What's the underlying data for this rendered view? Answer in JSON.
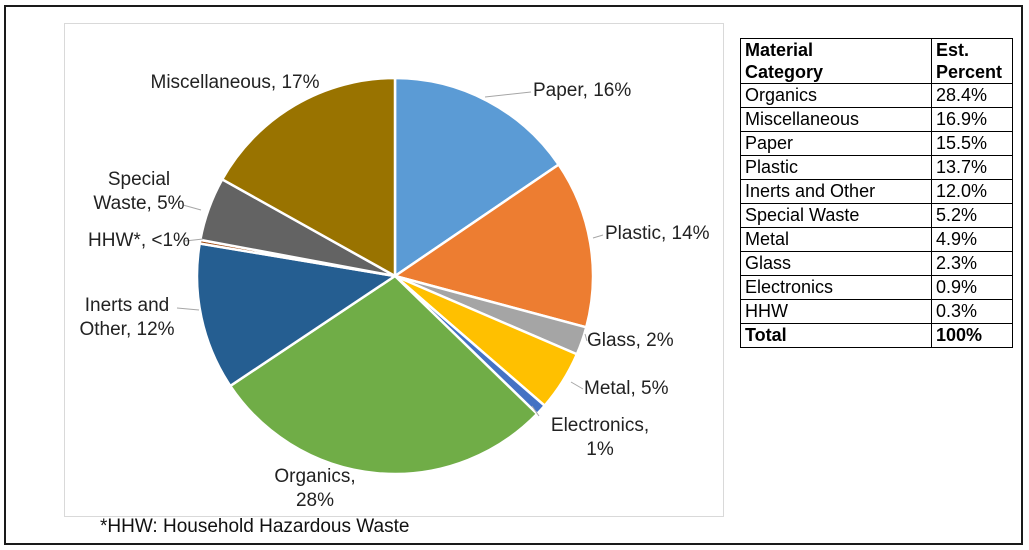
{
  "footnote": "*HHW: Household Hazardous Waste",
  "chart_data": {
    "type": "pie",
    "title": "",
    "slices": [
      {
        "name": "Paper",
        "label": [
          "Paper, 16%"
        ],
        "value": 15.5,
        "color": "#5b9bd5"
      },
      {
        "name": "Plastic",
        "label": [
          "Plastic, 14%"
        ],
        "value": 13.7,
        "color": "#ed7d31"
      },
      {
        "name": "Glass",
        "label": [
          "Glass, 2%"
        ],
        "value": 2.3,
        "color": "#a5a5a5"
      },
      {
        "name": "Metal",
        "label": [
          "Metal, 5%"
        ],
        "value": 4.9,
        "color": "#ffc000"
      },
      {
        "name": "Electronics",
        "label": [
          "Electronics,",
          "1%"
        ],
        "value": 0.9,
        "color": "#4472c4"
      },
      {
        "name": "Organics",
        "label": [
          "Organics,",
          "28%"
        ],
        "value": 28.4,
        "color": "#70ad47"
      },
      {
        "name": "Inerts and Other",
        "label": [
          "Inerts and",
          "Other, 12%"
        ],
        "value": 12.0,
        "color": "#255e91"
      },
      {
        "name": "HHW",
        "label": [
          "HHW*, <1%"
        ],
        "value": 0.3,
        "color": "#9e480e"
      },
      {
        "name": "Special Waste",
        "label": [
          "Special",
          "Waste, 5%"
        ],
        "value": 5.2,
        "color": "#636363"
      },
      {
        "name": "Miscellaneous",
        "label": [
          "Miscellaneous, 17%"
        ],
        "value": 16.9,
        "color": "#997300"
      }
    ]
  },
  "table": {
    "headers": [
      [
        "Material",
        "Category"
      ],
      [
        "Est.",
        "Percent"
      ]
    ],
    "rows": [
      [
        "Organics",
        "28.4%"
      ],
      [
        "Miscellaneous",
        "16.9%"
      ],
      [
        "Paper",
        "15.5%"
      ],
      [
        "Plastic",
        "13.7%"
      ],
      [
        "Inerts and Other",
        "12.0%"
      ],
      [
        "Special Waste",
        "5.2%"
      ],
      [
        "Metal",
        "4.9%"
      ],
      [
        "Glass",
        "2.3%"
      ],
      [
        "Electronics",
        "0.9%"
      ],
      [
        "HHW",
        "0.3%"
      ]
    ],
    "total": [
      "Total",
      "100%"
    ]
  }
}
